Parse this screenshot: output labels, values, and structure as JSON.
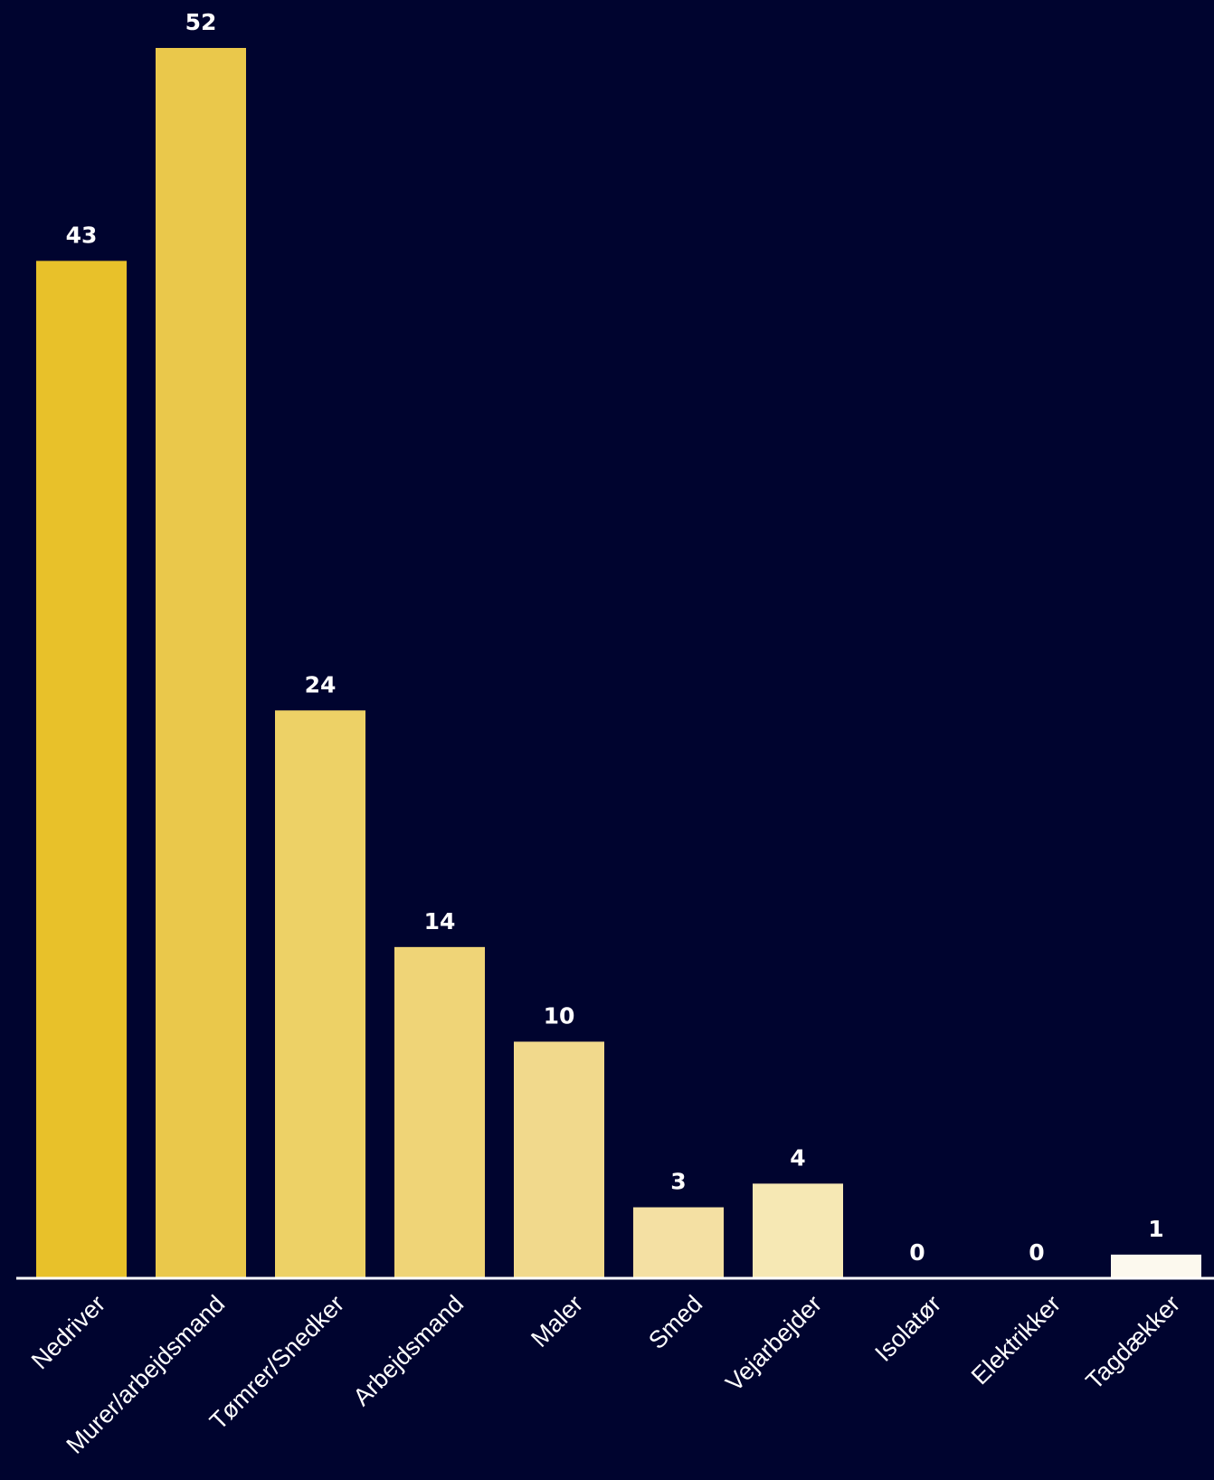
{
  "chart_data": {
    "type": "bar",
    "categories": [
      "Nedriver",
      "Murer/arbejdsmand",
      "Tømrer/Snedker",
      "Arbejdsmand",
      "Maler",
      "Smed",
      "Vejarbejder",
      "Isolatør",
      "Elektrikker",
      "Tagdækker"
    ],
    "values": [
      43,
      52,
      24,
      14,
      10,
      3,
      4,
      0,
      0,
      1
    ],
    "colors": [
      "#e8c12a",
      "#eac84b",
      "#edd166",
      "#efd477",
      "#f1d98c",
      "#f4e0a3",
      "#f6e8b4",
      "#f8f0d0",
      "#faf4df",
      "#fcf9ee"
    ],
    "title": "",
    "xlabel": "",
    "ylabel": "",
    "ylim": [
      0,
      52
    ],
    "grid": false,
    "legend": "none",
    "background": "#00042f",
    "baseline_color": "#ffffff"
  }
}
